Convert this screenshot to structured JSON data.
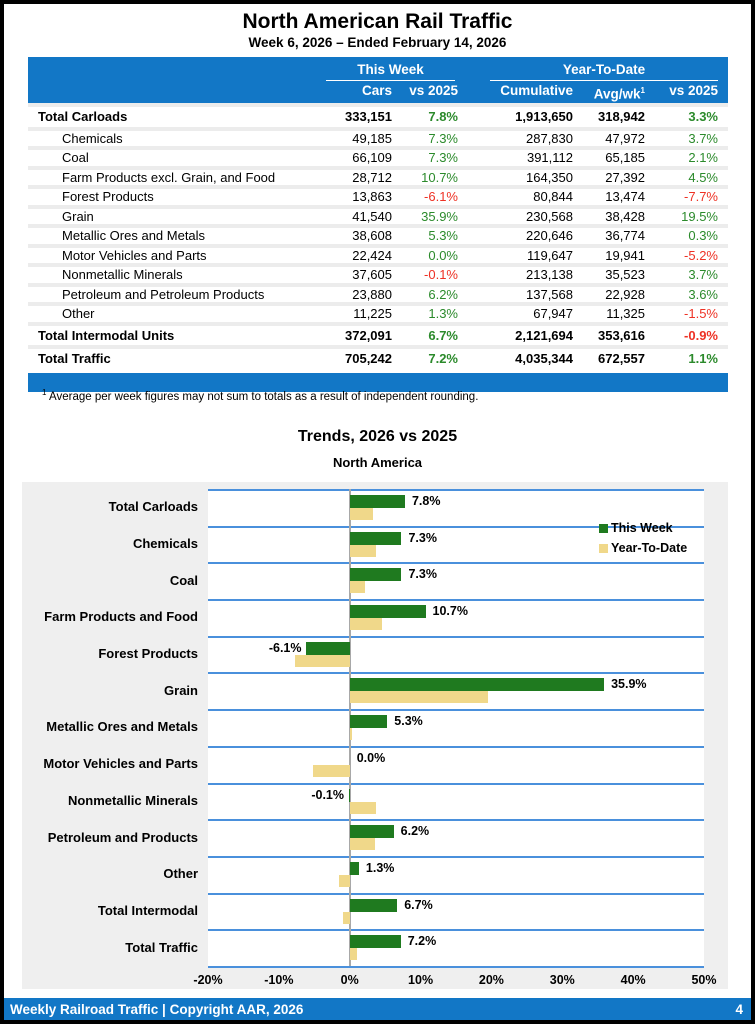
{
  "report": {
    "title": "North American Rail Traffic",
    "subtitle": "Week 6, 2026 – Ended February 14, 2026"
  },
  "table": {
    "header": {
      "group_week": "This Week",
      "group_ytd": "Year-To-Date",
      "col_cars": "Cars",
      "col_vs_week": "vs 2025",
      "col_cumulative": "Cumulative",
      "col_avgwk": "Avg/wk",
      "col_avgwk_sup": "1",
      "col_vs_ytd": "vs 2025"
    },
    "rows": [
      {
        "label": "Total Carloads",
        "cars": "333,151",
        "wk": "7.8%",
        "wk_s": "pos",
        "cum": "1,913,650",
        "avg": "318,942",
        "ytd": "3.3%",
        "ytd_s": "pos",
        "style": "total"
      },
      {
        "label": "Chemicals",
        "cars": "49,185",
        "wk": "7.3%",
        "wk_s": "pos",
        "cum": "287,830",
        "avg": "47,972",
        "ytd": "3.7%",
        "ytd_s": "pos",
        "style": "sub"
      },
      {
        "label": "Coal",
        "cars": "66,109",
        "wk": "7.3%",
        "wk_s": "pos",
        "cum": "391,112",
        "avg": "65,185",
        "ytd": "2.1%",
        "ytd_s": "pos",
        "style": "sub"
      },
      {
        "label": "Farm Products excl. Grain, and Food",
        "cars": "28,712",
        "wk": "10.7%",
        "wk_s": "pos",
        "cum": "164,350",
        "avg": "27,392",
        "ytd": "4.5%",
        "ytd_s": "pos",
        "style": "sub"
      },
      {
        "label": "Forest Products",
        "cars": "13,863",
        "wk": "-6.1%",
        "wk_s": "neg",
        "cum": "80,844",
        "avg": "13,474",
        "ytd": "-7.7%",
        "ytd_s": "neg",
        "style": "sub"
      },
      {
        "label": "Grain",
        "cars": "41,540",
        "wk": "35.9%",
        "wk_s": "pos",
        "cum": "230,568",
        "avg": "38,428",
        "ytd": "19.5%",
        "ytd_s": "pos",
        "style": "sub"
      },
      {
        "label": "Metallic Ores and Metals",
        "cars": "38,608",
        "wk": "5.3%",
        "wk_s": "pos",
        "cum": "220,646",
        "avg": "36,774",
        "ytd": "0.3%",
        "ytd_s": "pos",
        "style": "sub"
      },
      {
        "label": "Motor Vehicles and Parts",
        "cars": "22,424",
        "wk": "0.0%",
        "wk_s": "pos",
        "cum": "119,647",
        "avg": "19,941",
        "ytd": "-5.2%",
        "ytd_s": "neg",
        "style": "sub"
      },
      {
        "label": "Nonmetallic Minerals",
        "cars": "37,605",
        "wk": "-0.1%",
        "wk_s": "neg",
        "cum": "213,138",
        "avg": "35,523",
        "ytd": "3.7%",
        "ytd_s": "pos",
        "style": "sub"
      },
      {
        "label": "Petroleum and Petroleum Products",
        "cars": "23,880",
        "wk": "6.2%",
        "wk_s": "pos",
        "cum": "137,568",
        "avg": "22,928",
        "ytd": "3.6%",
        "ytd_s": "pos",
        "style": "sub"
      },
      {
        "label": "Other",
        "cars": "11,225",
        "wk": "1.3%",
        "wk_s": "pos",
        "cum": "67,947",
        "avg": "11,325",
        "ytd": "-1.5%",
        "ytd_s": "neg",
        "style": "sub"
      },
      {
        "label": "Total Intermodal Units",
        "cars": "372,091",
        "wk": "6.7%",
        "wk_s": "pos",
        "cum": "2,121,694",
        "avg": "353,616",
        "ytd": "-0.9%",
        "ytd_s": "neg",
        "style": "total"
      },
      {
        "label": "Total Traffic",
        "cars": "705,242",
        "wk": "7.2%",
        "wk_s": "pos",
        "cum": "4,035,344",
        "avg": "672,557",
        "ytd": "1.1%",
        "ytd_s": "pos",
        "style": "total"
      }
    ],
    "footnote_sup": "1",
    "footnote": "Average per week figures may not sum to totals as a result of independent rounding."
  },
  "chart": {
    "title": "Trends, 2026 vs 2025",
    "subtitle": "North America",
    "legend": [
      {
        "label": "This Week",
        "color": "#1F7A1F"
      },
      {
        "label": "Year-To-Date",
        "color": "#F0D88A"
      }
    ]
  },
  "chart_data": {
    "type": "bar",
    "orientation": "horizontal",
    "title": "Trends, 2026 vs 2025",
    "subtitle": "North America",
    "categories": [
      "Total Carloads",
      "Chemicals",
      "Coal",
      "Farm Products and Food",
      "Forest Products",
      "Grain",
      "Metallic Ores and Metals",
      "Motor Vehicles and Parts",
      "Nonmetallic Minerals",
      "Petroleum and Products",
      "Other",
      "Total Intermodal",
      "Total Traffic"
    ],
    "series": [
      {
        "name": "This Week",
        "color": "#1F7A1F",
        "values": [
          7.8,
          7.3,
          7.3,
          10.7,
          -6.1,
          35.9,
          5.3,
          0.0,
          -0.1,
          6.2,
          1.3,
          6.7,
          7.2
        ]
      },
      {
        "name": "Year-To-Date",
        "color": "#F0D88A",
        "values": [
          3.3,
          3.7,
          2.1,
          4.5,
          -7.7,
          19.5,
          0.3,
          -5.2,
          3.7,
          3.6,
          -1.5,
          -0.9,
          1.1
        ]
      }
    ],
    "bar_labels": [
      "7.8%",
      "7.3%",
      "7.3%",
      "10.7%",
      "-6.1%",
      "35.9%",
      "5.3%",
      "0.0%",
      "-0.1%",
      "6.2%",
      "1.3%",
      "6.7%",
      "7.2%"
    ],
    "xlabel": "",
    "ylabel": "",
    "xlim": [
      -20,
      50
    ],
    "xticks": [
      "-20%",
      "-10%",
      "0%",
      "10%",
      "20%",
      "30%",
      "40%",
      "50%"
    ],
    "grid": "blue category separator lines, gray zero line",
    "legend_position": "top-right"
  },
  "footer": {
    "text": "Weekly Railroad Traffic | Copyright AAR, 2026",
    "page": "4"
  },
  "colors": {
    "brand_blue": "#1277C6",
    "positive_green": "#2B8A2B",
    "negative_red": "#EE3124",
    "bar_green": "#1F7A1F",
    "bar_tan": "#F0D88A",
    "gridline_blue": "#4A90DC",
    "chart_bg": "#EFEFEF",
    "row_separator": "#ECECEC",
    "zero_line": "#A8A8A8"
  }
}
